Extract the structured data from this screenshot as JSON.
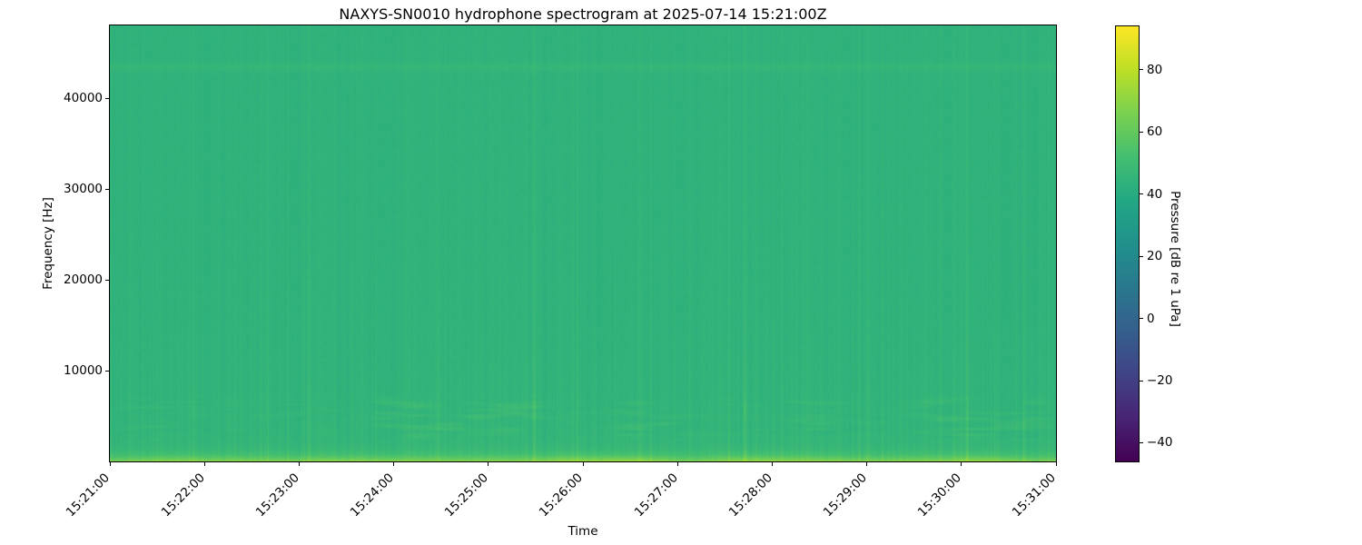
{
  "chart_data": {
    "type": "heatmap",
    "title": "NAXYS-SN0010 hydrophone spectrogram at 2025-07-14 15:21:00Z",
    "xlabel": "Time",
    "ylabel": "Frequency [Hz]",
    "x_tick_labels": [
      "15:21:00",
      "15:22:00",
      "15:23:00",
      "15:24:00",
      "15:25:00",
      "15:26:00",
      "15:27:00",
      "15:28:00",
      "15:29:00",
      "15:30:00",
      "15:31:00"
    ],
    "x_tick_rotation_deg": 45,
    "y_tick_values": [
      10000,
      20000,
      30000,
      40000
    ],
    "y_tick_labels": [
      "10000",
      "20000",
      "30000",
      "40000"
    ],
    "y_range_hz": [
      0,
      48000
    ],
    "grid": false,
    "colormap": "viridis",
    "colorbar": {
      "label": "Pressure [dB re 1 uPa]",
      "tick_values": [
        -40,
        -20,
        0,
        20,
        40,
        60,
        80
      ],
      "tick_labels": [
        "−40",
        "−20",
        "0",
        "20",
        "40",
        "60",
        "80"
      ],
      "vmin": -46,
      "vmax": 94,
      "position": "right"
    },
    "features": [
      {
        "name": "broadband-ambient",
        "level_db": 44,
        "desc": "near-uniform green ambient field across 0-48 kHz for the whole record"
      },
      {
        "name": "low-frequency-noise-band",
        "freq_hz": [
          0,
          1200
        ],
        "level_db": 68,
        "desc": "bright yellow-green band hugging 0 Hz across all times"
      },
      {
        "name": "vertical-striations",
        "amp_db": 2,
        "desc": "fine column-to-column level flicker over the full bandwidth"
      },
      {
        "name": "mid-band-wisps",
        "freq_hz": [
          2500,
          7500
        ],
        "boost_db": 5,
        "time_windows": [
          "15:23:30-15:25:45",
          "15:26:10-15:27:20",
          "15:28:00-15:28:45",
          "15:29:25-15:31:00"
        ]
      },
      {
        "name": "transient-clicks",
        "times": [
          "15:21:55",
          "15:23:05",
          "15:24:28",
          "15:25:29",
          "15:26:37",
          "15:27:43",
          "15:29:00",
          "15:30:26",
          "15:30:47"
        ],
        "boost_db": 8
      },
      {
        "name": "high-frequency-tonal",
        "freq_hz": 43400,
        "boost_db": 2,
        "desc": "faint lighter horizontal line near 43.4 kHz"
      }
    ],
    "render": {
      "seed": 20250714,
      "base_db": 44,
      "pixel_noise_db": 1.1,
      "striation": {
        "amp_db": 1.6,
        "freq_scale_hz": 15000,
        "impulse_chance": 0.06,
        "impulse_max_db": 3.5
      },
      "bottom_band": {
        "boost_db": 24,
        "freq_scale_hz": 600
      },
      "low_gradient": {
        "boost_db": 1.5,
        "freq_scale_hz": 9000
      },
      "tonal_line": {
        "freq_hz": 43400,
        "boost_db": 2.2,
        "sigma_hz": 350
      },
      "wisp_band": {
        "freq_lo_hz": 2000,
        "freq_hi_hz": 7600,
        "boost_db": 5,
        "floor": 0.25,
        "windows": [
          [
            0.0,
            0.08,
            0.5
          ],
          [
            0.26,
            0.47,
            1.0
          ],
          [
            0.52,
            0.63,
            0.8
          ],
          [
            0.7,
            0.78,
            0.7
          ],
          [
            0.84,
            1.0,
            0.9
          ]
        ]
      },
      "impulses": [
        [
          0.088,
          5,
          1
        ],
        [
          0.21,
          4.5,
          0
        ],
        [
          0.347,
          5,
          1
        ],
        [
          0.448,
          8,
          3
        ],
        [
          0.56,
          4.5,
          0
        ],
        [
          0.671,
          7,
          4
        ],
        [
          0.8,
          4.5,
          0
        ],
        [
          0.906,
          5.5,
          2
        ],
        [
          0.965,
          4.5,
          0
        ]
      ]
    }
  },
  "colors": {
    "background": "#ffffff",
    "text": "#000000",
    "spine": "#000000",
    "ambient_sampled": "#2fb478",
    "bottom_band_sampled": "#86d44d",
    "viridis_stops": [
      "#440154",
      "#482475",
      "#414487",
      "#355f8d",
      "#2a788e",
      "#21918c",
      "#22a884",
      "#44bf70",
      "#7ad151",
      "#bddf26",
      "#fde725"
    ]
  }
}
